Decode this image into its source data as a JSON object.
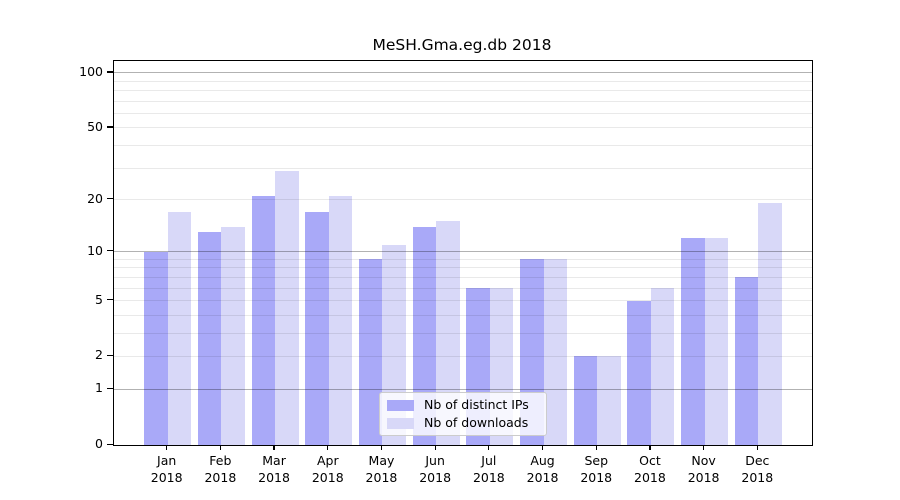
{
  "chart_data": {
    "type": "bar",
    "title": "MeSH.Gma.eg.db 2018",
    "year": "2018",
    "months": [
      "Jan",
      "Feb",
      "Mar",
      "Apr",
      "May",
      "Jun",
      "Jul",
      "Aug",
      "Sep",
      "Oct",
      "Nov",
      "Dec"
    ],
    "categories": [
      "Jan 2018",
      "Feb 2018",
      "Mar 2018",
      "Apr 2018",
      "May 2018",
      "Jun 2018",
      "Jul 2018",
      "Aug 2018",
      "Sep 2018",
      "Oct 2018",
      "Nov 2018",
      "Dec 2018"
    ],
    "series": [
      {
        "name": "Nb of distinct IPs",
        "color": "#a9a9f8",
        "values": [
          10,
          13,
          21,
          17,
          9,
          14,
          6,
          9,
          2,
          5,
          12,
          7
        ]
      },
      {
        "name": "Nb of downloads",
        "color": "#d8d8f8",
        "values": [
          17,
          14,
          29,
          21,
          11,
          15,
          6,
          9,
          2,
          6,
          12,
          19
        ]
      }
    ],
    "xlabel": "",
    "ylabel": "",
    "yscale": "log1p",
    "yticks": [
      0,
      1,
      2,
      5,
      10,
      20,
      50,
      100
    ],
    "ylim": [
      0,
      116
    ],
    "grid": {
      "on": true,
      "major_values": [
        1,
        10,
        100
      ],
      "minor_values": [
        2,
        3,
        4,
        5,
        6,
        7,
        8,
        9,
        20,
        30,
        40,
        50,
        60,
        70,
        80,
        90
      ],
      "major_color": "#b2b2b2",
      "minor_color": "#e7e7e7"
    },
    "legend_position": "lower center"
  },
  "colors": {
    "background": "#ffffff",
    "spine": "#000000",
    "tick_label": "#000000",
    "bar_ips": "#a9a9f8",
    "bar_downloads": "#d8d8f8",
    "legend_border": "#cccccc",
    "legend_background": "rgba(255,255,255,0.8)"
  }
}
